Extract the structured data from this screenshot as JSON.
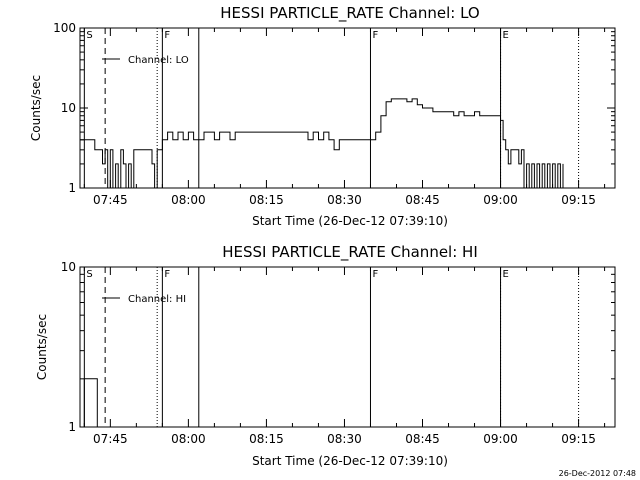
{
  "time_labels": [
    "07:45",
    "08:00",
    "08:15",
    "08:30",
    "08:45",
    "09:00",
    "09:15"
  ],
  "footer_stamp": "26-Dec-2012 07:48",
  "chart_data": [
    {
      "type": "line",
      "title": "HESSI PARTICLE_RATE Channel: LO",
      "xlabel": "Start Time (26-Dec-12 07:39:10)",
      "ylabel": "Counts/sec",
      "y_scale": "log",
      "ylim": [
        1,
        100
      ],
      "xlim": [
        "07:39:10",
        "09:22"
      ],
      "ytick_labels": [
        "1",
        "10",
        "100"
      ],
      "legend": {
        "label": "Channel: LO",
        "placement": "top-left"
      },
      "markers": [
        {
          "time": "07:40",
          "style": "solid",
          "label": "S"
        },
        {
          "time": "07:44",
          "style": "dashed",
          "label": ""
        },
        {
          "time": "07:54",
          "style": "dotted",
          "label": ""
        },
        {
          "time": "07:55",
          "style": "solid",
          "label": "F"
        },
        {
          "time": "08:02",
          "style": "solid",
          "label": ""
        },
        {
          "time": "08:35",
          "style": "solid",
          "label": "F"
        },
        {
          "time": "09:00",
          "style": "solid",
          "label": "E"
        },
        {
          "time": "09:00",
          "style": "dotted",
          "label": ""
        },
        {
          "time": "09:15",
          "style": "dotted",
          "label": ""
        }
      ],
      "series": [
        {
          "name": "Channel: LO",
          "times": [
            "07:39:10",
            "07:42:00",
            "07:42:01",
            "07:43:00",
            "07:43:30",
            "07:44:00",
            "07:44:30",
            "07:45:00",
            "07:45:30",
            "07:46:00",
            "07:46:30",
            "07:47:00",
            "07:47:30",
            "07:48:00",
            "07:48:30",
            "07:49:00",
            "07:49:30",
            "07:50:00",
            "07:50:30",
            "07:51:00",
            "07:51:30",
            "07:52:00",
            "07:52:30",
            "07:53:00",
            "07:53:30",
            "07:54:00",
            "07:54:30",
            "07:55:00",
            "07:56:00",
            "07:57:00",
            "07:58:00",
            "07:59:00",
            "08:00:00",
            "08:01:00",
            "08:02:00",
            "08:03:00",
            "08:04:00",
            "08:05:00",
            "08:06:00",
            "08:07:00",
            "08:08:00",
            "08:09:00",
            "08:10:00",
            "08:11:00",
            "08:12:00",
            "08:13:00",
            "08:14:00",
            "08:15:00",
            "08:16:00",
            "08:17:00",
            "08:18:00",
            "08:19:00",
            "08:20:00",
            "08:21:00",
            "08:22:00",
            "08:23:00",
            "08:24:00",
            "08:25:00",
            "08:26:00",
            "08:27:00",
            "08:28:00",
            "08:29:00",
            "08:30:00",
            "08:31:00",
            "08:32:00",
            "08:33:00",
            "08:34:00",
            "08:35:00",
            "08:36:00",
            "08:37:00",
            "08:38:00",
            "08:39:00",
            "08:40:00",
            "08:41:00",
            "08:42:00",
            "08:43:00",
            "08:44:00",
            "08:45:00",
            "08:46:00",
            "08:47:00",
            "08:48:00",
            "08:49:00",
            "08:50:00",
            "08:51:00",
            "08:52:00",
            "08:53:00",
            "08:54:00",
            "08:55:00",
            "08:56:00",
            "08:57:00",
            "08:58:00",
            "08:59:00",
            "09:00:00",
            "09:00:30",
            "09:01:00",
            "09:01:30",
            "09:02:00",
            "09:02:30",
            "09:03:00",
            "09:03:30",
            "09:04:00",
            "09:04:30",
            "09:05:00",
            "09:05:30",
            "09:06:00",
            "09:06:30",
            "09:07:00",
            "09:07:30",
            "09:08:00",
            "09:08:30",
            "09:09:00",
            "09:09:30",
            "09:10:00",
            "09:10:30",
            "09:11:00",
            "09:11:30",
            "09:12:00"
          ],
          "values": [
            4,
            4,
            3,
            3,
            2,
            3,
            1,
            3,
            1,
            2,
            1,
            3,
            2,
            1,
            2,
            1,
            3,
            3,
            3,
            3,
            3,
            3,
            3,
            2,
            1,
            3,
            3,
            4,
            5,
            4,
            5,
            4,
            5,
            4,
            4,
            5,
            5,
            4,
            5,
            5,
            4,
            5,
            5,
            5,
            5,
            5,
            5,
            5,
            5,
            5,
            5,
            5,
            5,
            5,
            5,
            4,
            5,
            4,
            5,
            4,
            3,
            4,
            4,
            4,
            4,
            4,
            4,
            4,
            5,
            8,
            12,
            13,
            13,
            13,
            12,
            13,
            11,
            10,
            10,
            9,
            9,
            9,
            9,
            8,
            9,
            8,
            8,
            9,
            8,
            8,
            8,
            8,
            7,
            4,
            3,
            2,
            3,
            3,
            3,
            2,
            3,
            1,
            2,
            1,
            2,
            1,
            2,
            1,
            2,
            1,
            2,
            1,
            2,
            1,
            2,
            1,
            2
          ]
        }
      ]
    },
    {
      "type": "line",
      "title": "HESSI PARTICLE_RATE Channel: HI",
      "xlabel": "Start Time (26-Dec-12 07:39:10)",
      "ylabel": "Counts/sec",
      "y_scale": "log",
      "ylim": [
        1,
        10
      ],
      "xlim": [
        "07:39:10",
        "09:22"
      ],
      "ytick_labels": [
        "1",
        "10"
      ],
      "legend": {
        "label": "Channel: HI",
        "placement": "top-left"
      },
      "markers": [
        {
          "time": "07:40",
          "style": "solid",
          "label": "S"
        },
        {
          "time": "07:44",
          "style": "dashed",
          "label": ""
        },
        {
          "time": "07:54",
          "style": "dotted",
          "label": ""
        },
        {
          "time": "07:55",
          "style": "solid",
          "label": "F"
        },
        {
          "time": "08:02",
          "style": "solid",
          "label": ""
        },
        {
          "time": "08:35",
          "style": "solid",
          "label": "F"
        },
        {
          "time": "09:00",
          "style": "solid",
          "label": "E"
        },
        {
          "time": "09:00",
          "style": "dotted",
          "label": ""
        },
        {
          "time": "09:15",
          "style": "dotted",
          "label": ""
        }
      ],
      "series": [
        {
          "name": "Channel: HI",
          "times": [
            "07:39:10",
            "07:39:40",
            "07:40:00",
            "07:42:00",
            "07:42:30",
            "07:43:00"
          ],
          "values": [
            1,
            1,
            2,
            2,
            1,
            1
          ]
        }
      ]
    }
  ]
}
